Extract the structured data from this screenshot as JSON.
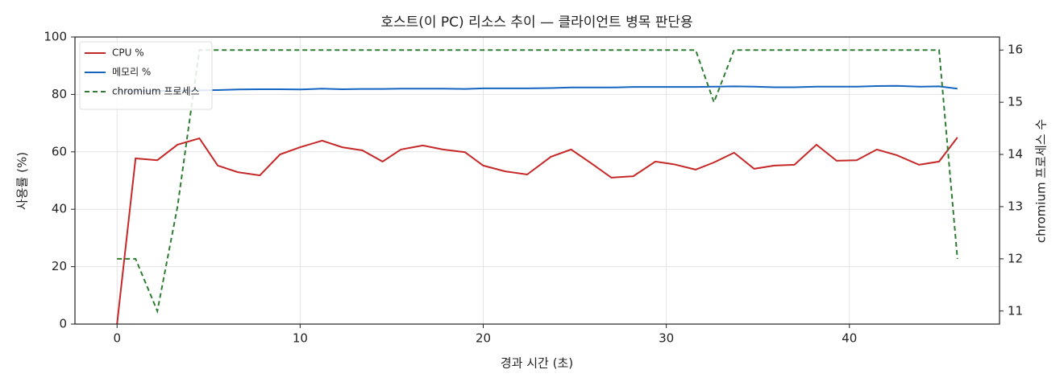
{
  "chart_data": {
    "type": "line",
    "title": "호스트(이 PC) 리소스 추이 — 클라이언트 병목 판단용",
    "x_label": "경과 시간 (초)",
    "y_label": "사용률 (%)",
    "y2_label": "chromium 프로세스 수",
    "x": [
      0,
      1.01,
      2.2,
      3.3,
      4.5,
      5.5,
      6.6,
      7.8,
      8.9,
      10.0,
      11.2,
      12.3,
      13.4,
      14.5,
      15.5,
      16.7,
      17.8,
      19.0,
      20.0,
      21.2,
      22.4,
      23.7,
      24.8,
      25.9,
      27.0,
      28.2,
      29.4,
      30.4,
      31.6,
      32.6,
      33.7,
      34.8,
      35.9,
      37.0,
      38.2,
      39.3,
      40.4,
      41.5,
      42.6,
      43.8,
      44.9,
      45.9
    ],
    "series": [
      {
        "name": "CPU %",
        "color": "#c62828",
        "dashed": false,
        "values": [
          0,
          57.7,
          57.1,
          62.5,
          64.7,
          55.2,
          52.9,
          51.8,
          59.1,
          61.6,
          63.9,
          61.6,
          60.5,
          56.6,
          60.8,
          62.2,
          60.8,
          59.9,
          55.2,
          53.2,
          52.1,
          58.3,
          60.8,
          56.0,
          51.0,
          51.5,
          56.6,
          55.7,
          53.8,
          56.3,
          59.7,
          54.1,
          55.2,
          55.5,
          62.5,
          56.9,
          57.1,
          60.8,
          58.8,
          55.5,
          56.6,
          65.0
        ]
      },
      {
        "name": "메모리 %",
        "color": "#1565c0",
        "dashed": false,
        "values": [
          81.0,
          81.1,
          81.2,
          81.3,
          81.4,
          81.5,
          81.7,
          81.8,
          81.8,
          81.7,
          82.0,
          81.8,
          81.9,
          81.9,
          82.0,
          82.0,
          82.0,
          81.9,
          82.1,
          82.1,
          82.1,
          82.2,
          82.4,
          82.4,
          82.4,
          82.6,
          82.6,
          82.6,
          82.6,
          82.7,
          82.8,
          82.7,
          82.5,
          82.5,
          82.7,
          82.7,
          82.7,
          82.9,
          83.0,
          82.7,
          82.8,
          82.0
        ]
      },
      {
        "name": "chromium 프로세스",
        "color": "#2e7d32",
        "dashed": true,
        "axis": "y2",
        "values": [
          12,
          12,
          11,
          13,
          16,
          16,
          16,
          16,
          16,
          16,
          16,
          16,
          16,
          16,
          16,
          16,
          16,
          16,
          16,
          16,
          16,
          16,
          16,
          16,
          16,
          16,
          16,
          16,
          16,
          15,
          16,
          16,
          16,
          16,
          16,
          16,
          16,
          16,
          16,
          16,
          16,
          12
        ]
      }
    ],
    "xlim": [
      -2.3,
      48.2
    ],
    "xticks": [
      0,
      10,
      20,
      30,
      40
    ],
    "ylim": [
      0,
      100
    ],
    "yticks": [
      0,
      20,
      40,
      60,
      80,
      100
    ],
    "y2lim": [
      10.75,
      16.25
    ],
    "y2ticks": [
      11,
      12,
      13,
      14,
      15,
      16
    ],
    "grid": true,
    "legend": "upper-left"
  }
}
